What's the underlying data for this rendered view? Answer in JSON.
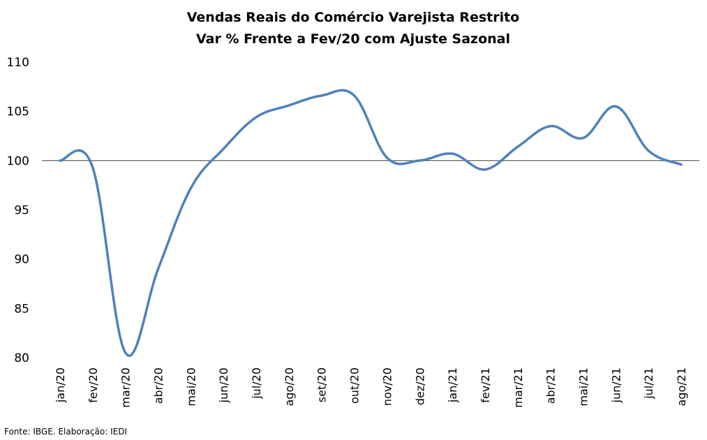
{
  "chart_data": {
    "type": "line",
    "title": "Vendas Reais do Comércio Varejista Restrito",
    "subtitle": "Var % Frente a Fev/20 com Ajuste Sazonal",
    "xlabel": "",
    "ylabel": "",
    "ylim": [
      80,
      110
    ],
    "yticks": [
      80,
      85,
      90,
      95,
      100,
      105,
      110
    ],
    "reference_line": 100,
    "grid": false,
    "legend": "none",
    "categories": [
      "jan/20",
      "fev/20",
      "mar/20",
      "abr/20",
      "mai/20",
      "jun/20",
      "jul/20",
      "ago/20",
      "set/20",
      "out/20",
      "nov/20",
      "dez/20",
      "jan/21",
      "fev/21",
      "mar/21",
      "abr/21",
      "mai/21",
      "jun/21",
      "jul/21",
      "ago/21"
    ],
    "series": [
      {
        "color": "#4f81bd",
        "values": [
          100.0,
          99.3,
          80.5,
          89.0,
          97.2,
          101.2,
          104.4,
          105.6,
          106.6,
          106.6,
          100.3,
          100.0,
          100.7,
          99.1,
          101.4,
          103.5,
          102.3,
          105.5,
          101.0,
          99.6
        ]
      }
    ]
  },
  "source": "Fonte: IBGE. Elaboração: IEDI"
}
